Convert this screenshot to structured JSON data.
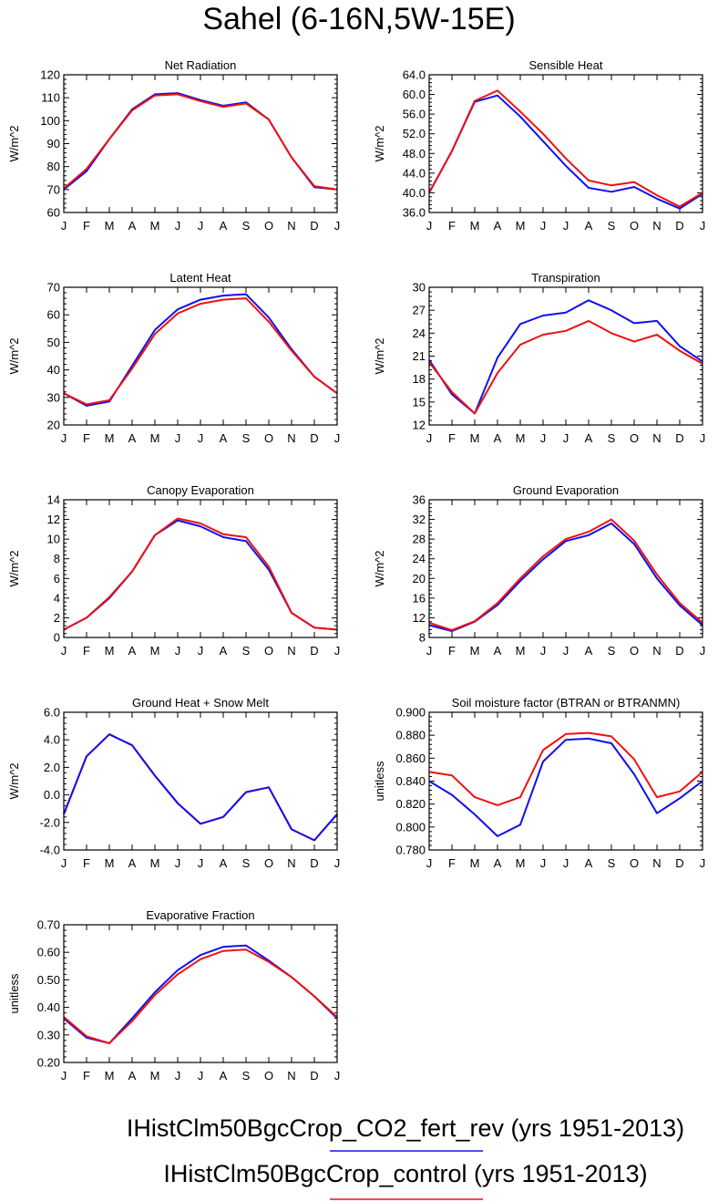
{
  "page_title": "Sahel (6-16N,5W-15E)",
  "colors": {
    "blue": "#1010ee",
    "red": "#ee1111",
    "axis": "#000000"
  },
  "legend": [
    {
      "label": "IHistClm50BgcCrop_CO2_fert_rev (yrs 1951-2013)",
      "color": "#1010ee"
    },
    {
      "label": "IHistClm50BgcCrop_control (yrs 1951-2013)",
      "color": "#ee1111"
    }
  ],
  "chart_data": [
    {
      "type": "line",
      "title": "Net Radiation",
      "ylabel": "W/m^2",
      "ylim": [
        60,
        120
      ],
      "yticks": [
        "60",
        "70",
        "80",
        "90",
        "100",
        "110",
        "120"
      ],
      "categories": [
        "J",
        "F",
        "M",
        "A",
        "M",
        "J",
        "J",
        "A",
        "S",
        "O",
        "N",
        "D",
        "J"
      ],
      "series": [
        {
          "color": "#1010ee",
          "values": [
            70,
            78,
            92,
            105,
            111.5,
            112,
            109,
            106.5,
            108,
            100.5,
            84,
            71,
            70
          ]
        },
        {
          "color": "#ee1111",
          "values": [
            70.5,
            79,
            92,
            104.5,
            111,
            111.5,
            108.5,
            106,
            107.5,
            100.5,
            84,
            71.5,
            70
          ]
        }
      ]
    },
    {
      "type": "line",
      "title": "Sensible Heat",
      "ylabel": "W/m^2",
      "ylim": [
        36,
        64
      ],
      "yticks": [
        "36.0",
        "40.0",
        "44.0",
        "48.0",
        "52.0",
        "56.0",
        "60.0",
        "64.0"
      ],
      "categories": [
        "J",
        "F",
        "M",
        "A",
        "M",
        "J",
        "J",
        "A",
        "S",
        "O",
        "N",
        "D",
        "J"
      ],
      "series": [
        {
          "color": "#1010ee",
          "values": [
            40,
            48.5,
            58.5,
            59.8,
            55.5,
            50.5,
            45.5,
            41,
            40.2,
            41.2,
            38.8,
            36.8,
            39.8
          ]
        },
        {
          "color": "#ee1111",
          "values": [
            40,
            48.5,
            58.7,
            60.8,
            56.5,
            52,
            47,
            42.5,
            41.5,
            42.2,
            39.5,
            37.2,
            40
          ]
        }
      ]
    },
    {
      "type": "line",
      "title": "Latent Heat",
      "ylabel": "W/m^2",
      "ylim": [
        20,
        70
      ],
      "yticks": [
        "20",
        "30",
        "40",
        "50",
        "60",
        "70"
      ],
      "categories": [
        "J",
        "F",
        "M",
        "A",
        "M",
        "J",
        "J",
        "A",
        "S",
        "O",
        "N",
        "D",
        "J"
      ],
      "series": [
        {
          "color": "#1010ee",
          "values": [
            31.5,
            27,
            28.5,
            41.5,
            54.5,
            62,
            65.5,
            67,
            67.5,
            59,
            47.5,
            37.5,
            31.5
          ]
        },
        {
          "color": "#ee1111",
          "values": [
            31.5,
            27.5,
            29,
            40.5,
            53,
            60.5,
            64,
            65.5,
            66,
            57.5,
            47,
            37.5,
            31.5
          ]
        }
      ]
    },
    {
      "type": "line",
      "title": "Transpiration",
      "ylabel": "W/m^2",
      "ylim": [
        12,
        30
      ],
      "yticks": [
        "12",
        "15",
        "18",
        "21",
        "24",
        "27",
        "30"
      ],
      "categories": [
        "J",
        "F",
        "M",
        "A",
        "M",
        "J",
        "J",
        "A",
        "S",
        "O",
        "N",
        "D",
        "J"
      ],
      "series": [
        {
          "color": "#1010ee",
          "values": [
            20.5,
            16,
            13.5,
            20.8,
            25.2,
            26.3,
            26.7,
            28.3,
            27,
            25.3,
            25.6,
            22.3,
            20.3
          ]
        },
        {
          "color": "#ee1111",
          "values": [
            20.2,
            16.3,
            13.5,
            18.8,
            22.5,
            23.8,
            24.3,
            25.6,
            24,
            22.9,
            23.8,
            21.7,
            20
          ]
        }
      ]
    },
    {
      "type": "line",
      "title": "Canopy Evaporation",
      "ylabel": "W/m^2",
      "ylim": [
        0,
        14
      ],
      "yticks": [
        "0",
        "2",
        "4",
        "6",
        "8",
        "10",
        "12",
        "14"
      ],
      "categories": [
        "J",
        "F",
        "M",
        "A",
        "M",
        "J",
        "J",
        "A",
        "S",
        "O",
        "N",
        "D",
        "J"
      ],
      "series": [
        {
          "color": "#1010ee",
          "values": [
            0.8,
            2,
            4,
            6.7,
            10.4,
            11.9,
            11.3,
            10.2,
            9.8,
            6.9,
            2.5,
            1,
            0.8
          ]
        },
        {
          "color": "#ee1111",
          "values": [
            0.8,
            2,
            4.1,
            6.7,
            10.4,
            12.1,
            11.6,
            10.5,
            10.2,
            7.2,
            2.5,
            1,
            0.8
          ]
        }
      ]
    },
    {
      "type": "line",
      "title": "Ground Evaporation",
      "ylabel": "W/m^2",
      "ylim": [
        8,
        36
      ],
      "yticks": [
        "8",
        "12",
        "16",
        "20",
        "24",
        "28",
        "32",
        "36"
      ],
      "categories": [
        "J",
        "F",
        "M",
        "A",
        "M",
        "J",
        "J",
        "A",
        "S",
        "O",
        "N",
        "D",
        "J"
      ],
      "series": [
        {
          "color": "#1010ee",
          "values": [
            10.5,
            9.3,
            11.2,
            14.6,
            19.5,
            23.9,
            27.6,
            28.8,
            31.2,
            27,
            20,
            14.5,
            10.5
          ]
        },
        {
          "color": "#ee1111",
          "values": [
            11,
            9.5,
            11.3,
            15,
            20,
            24.5,
            28,
            29.5,
            32,
            27.7,
            20.8,
            15,
            11
          ]
        }
      ]
    },
    {
      "type": "line",
      "title": "Ground Heat + Snow Melt",
      "ylabel": "W/m^2",
      "ylim": [
        -4,
        6
      ],
      "yticks": [
        "-4.0",
        "-2.0",
        "0.0",
        "2.0",
        "4.0",
        "6.0"
      ],
      "categories": [
        "J",
        "F",
        "M",
        "A",
        "M",
        "J",
        "J",
        "A",
        "S",
        "O",
        "N",
        "D",
        "J"
      ],
      "series": [
        {
          "color": "#ee1111",
          "values": [
            -1.4,
            2.8,
            4.4,
            3.6,
            1.4,
            -0.6,
            -2.1,
            -1.6,
            0.2,
            0.55,
            -2.5,
            -3.3,
            -1.4
          ]
        },
        {
          "color": "#1010ee",
          "values": [
            -1.4,
            2.8,
            4.4,
            3.6,
            1.4,
            -0.6,
            -2.1,
            -1.6,
            0.2,
            0.55,
            -2.5,
            -3.3,
            -1.4
          ]
        }
      ]
    },
    {
      "type": "line",
      "title": "Soil moisture factor (BTRAN or BTRANMN)",
      "ylabel": "unitless",
      "ylim": [
        0.78,
        0.9
      ],
      "yticks": [
        "0.780",
        "0.800",
        "0.820",
        "0.840",
        "0.860",
        "0.880",
        "0.900"
      ],
      "categories": [
        "J",
        "F",
        "M",
        "A",
        "M",
        "J",
        "J",
        "A",
        "S",
        "O",
        "N",
        "D",
        "J"
      ],
      "series": [
        {
          "color": "#1010ee",
          "values": [
            0.84,
            0.828,
            0.811,
            0.792,
            0.802,
            0.857,
            0.876,
            0.877,
            0.873,
            0.846,
            0.812,
            0.825,
            0.84
          ]
        },
        {
          "color": "#ee1111",
          "values": [
            0.848,
            0.845,
            0.826,
            0.819,
            0.826,
            0.867,
            0.881,
            0.882,
            0.879,
            0.859,
            0.826,
            0.831,
            0.848
          ]
        }
      ]
    },
    {
      "type": "line",
      "title": "Evaporative Fraction",
      "ylabel": "unitless",
      "ylim": [
        0.2,
        0.7
      ],
      "yticks": [
        "0.20",
        "0.30",
        "0.40",
        "0.50",
        "0.60",
        "0.70"
      ],
      "categories": [
        "J",
        "F",
        "M",
        "A",
        "M",
        "J",
        "J",
        "A",
        "S",
        "O",
        "N",
        "D",
        "J"
      ],
      "series": [
        {
          "color": "#1010ee",
          "values": [
            0.36,
            0.29,
            0.27,
            0.36,
            0.455,
            0.535,
            0.59,
            0.62,
            0.625,
            0.57,
            0.51,
            0.44,
            0.36
          ]
        },
        {
          "color": "#ee1111",
          "values": [
            0.365,
            0.295,
            0.27,
            0.35,
            0.445,
            0.52,
            0.575,
            0.605,
            0.61,
            0.565,
            0.51,
            0.44,
            0.365
          ]
        }
      ]
    }
  ]
}
